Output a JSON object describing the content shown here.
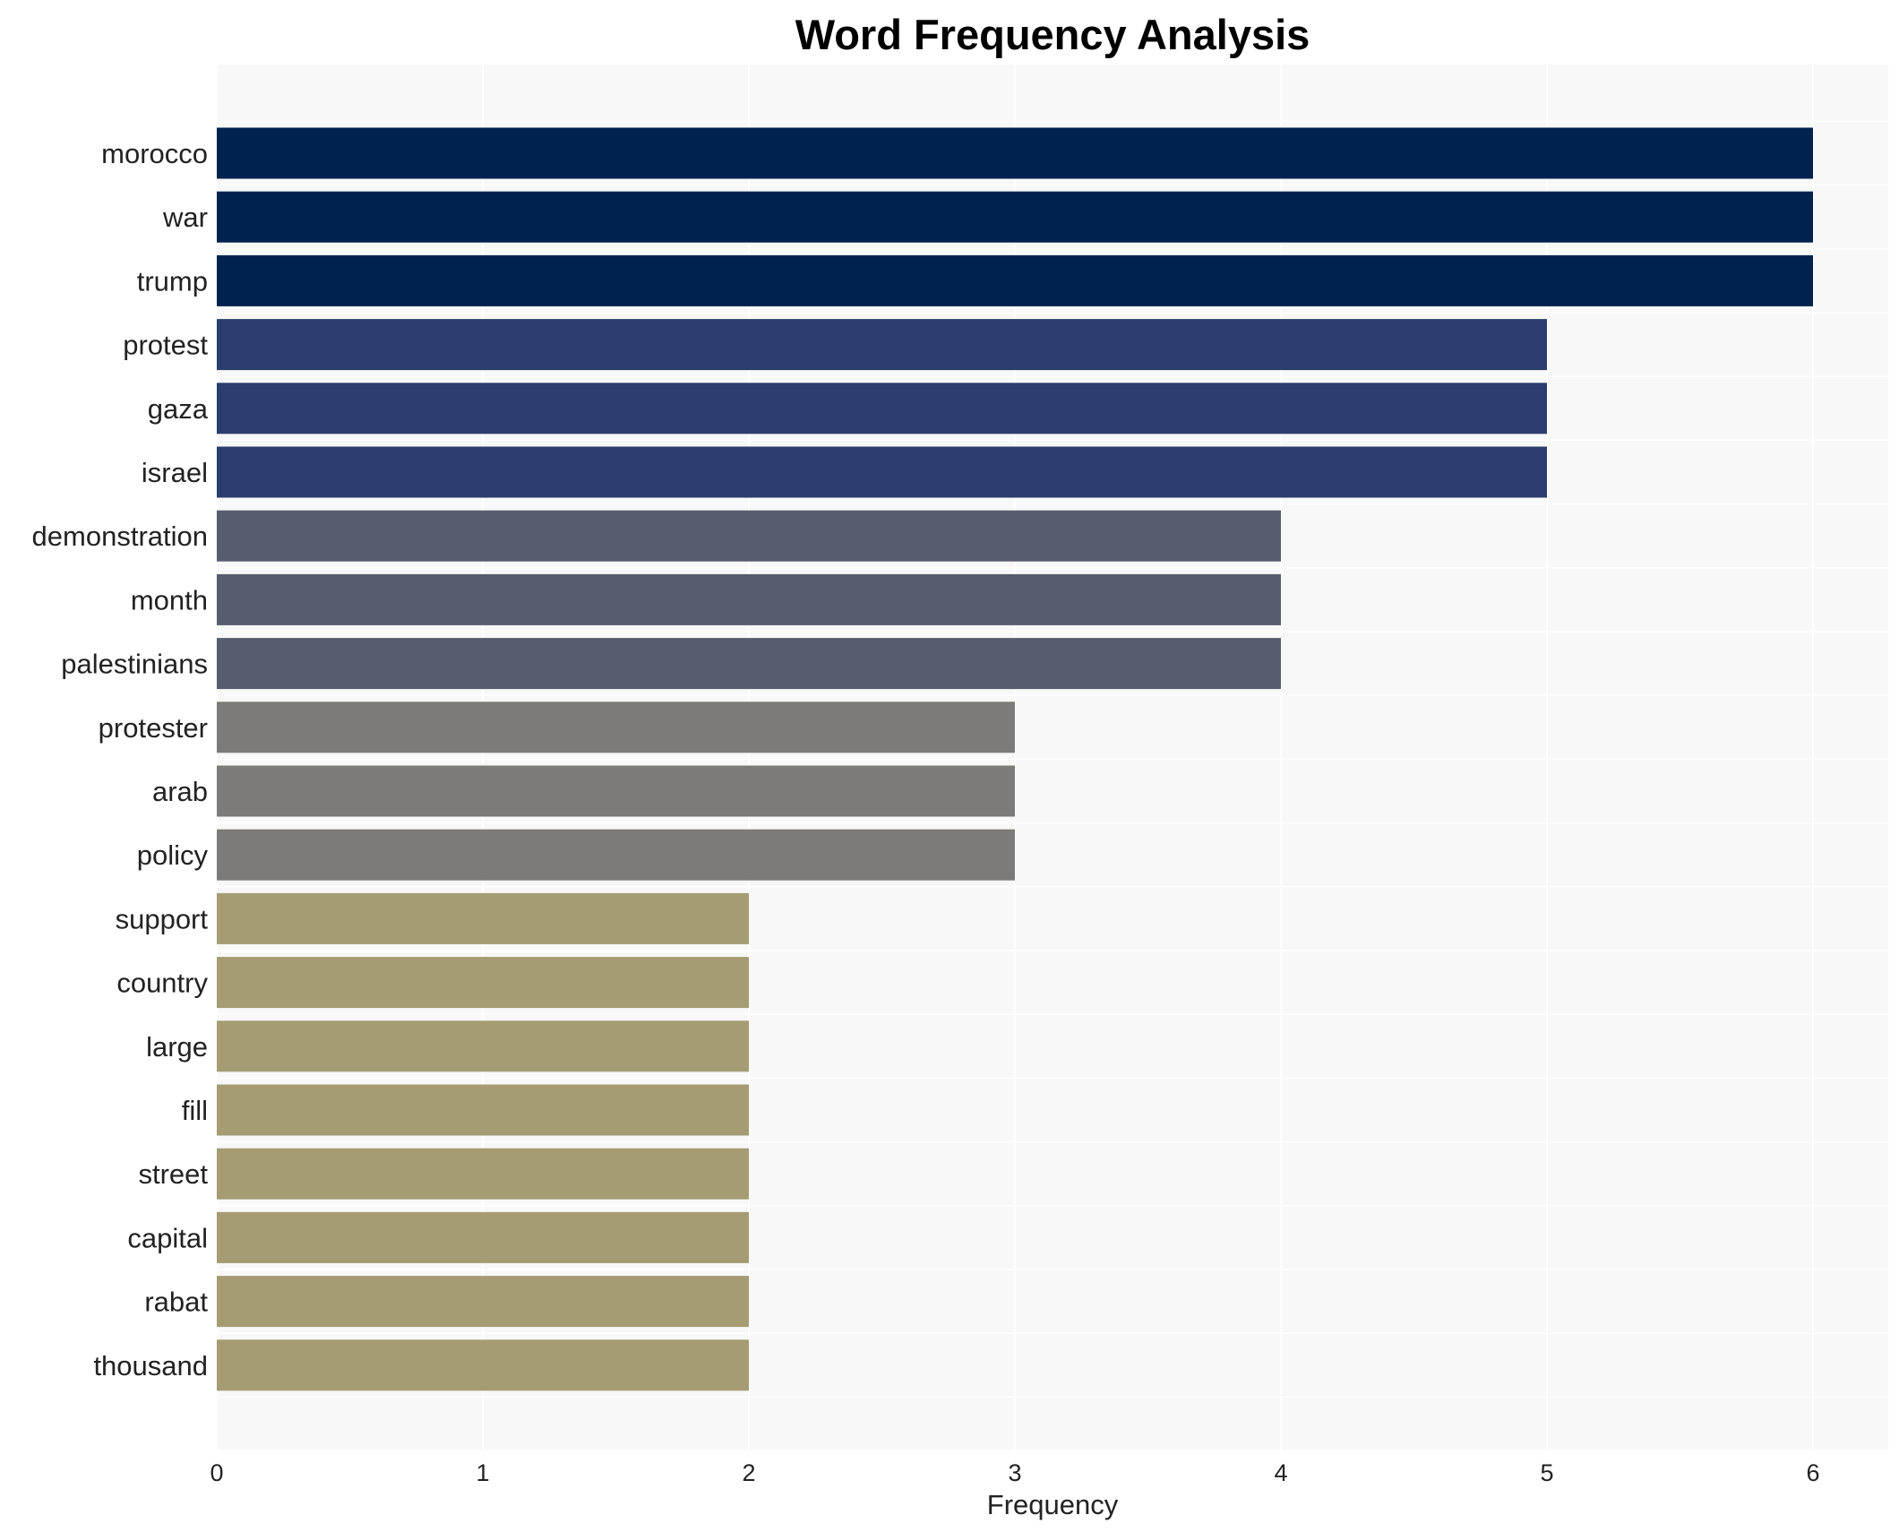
{
  "chart_data": {
    "type": "bar",
    "orientation": "horizontal",
    "title": "Word Frequency Analysis",
    "xlabel": "Frequency",
    "ylabel": "",
    "xlim": [
      0,
      6.3
    ],
    "x_ticks": [
      "0",
      "1",
      "2",
      "3",
      "4",
      "5",
      "6"
    ],
    "grid": true,
    "legend": "none",
    "background": "#f8f8f8",
    "categories": [
      "morocco",
      "war",
      "trump",
      "protest",
      "gaza",
      "israel",
      "demonstration",
      "month",
      "palestinians",
      "protester",
      "arab",
      "policy",
      "support",
      "country",
      "large",
      "fill",
      "street",
      "capital",
      "rabat",
      "thousand"
    ],
    "values": [
      6,
      6,
      6,
      5,
      5,
      5,
      4,
      4,
      4,
      3,
      3,
      3,
      2,
      2,
      2,
      2,
      2,
      2,
      2,
      2
    ],
    "color_by_value": {
      "6": "#00224e",
      "5": "#2c3e6e",
      "4": "#575d6d",
      "3": "#7c7b78",
      "2": "#a59c74"
    }
  }
}
